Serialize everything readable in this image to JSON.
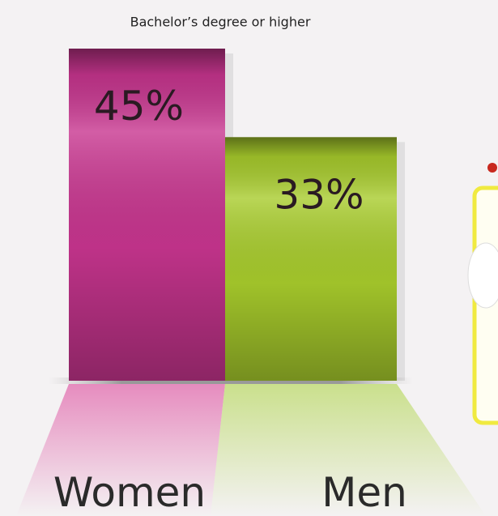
{
  "chart_data": {
    "type": "bar",
    "title": "Bachelor’s degree or higher",
    "categories": [
      "Women",
      "Men"
    ],
    "values": [
      45,
      33
    ],
    "value_labels": [
      "45%",
      "33%"
    ],
    "colors": [
      "#c8358f",
      "#a8cc2c"
    ]
  }
}
